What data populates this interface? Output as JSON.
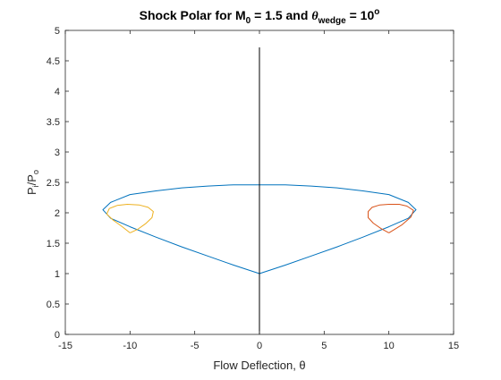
{
  "chart_data": {
    "type": "line",
    "title": {
      "prefix": "Shock Polar for M",
      "m_sub": "0",
      "middle": " = 1.5 and ",
      "theta": "θ",
      "theta_sub": "wedge",
      "value": " = 10",
      "degree": "o"
    },
    "xlabel": "Flow Deflection, θ",
    "ylabel": {
      "main": "P",
      "sub": "i",
      "sep": "/P",
      "sub2": "o"
    },
    "xlim": [
      -15,
      15
    ],
    "ylim": [
      0,
      5
    ],
    "xticks": [
      -15,
      -10,
      -5,
      0,
      5,
      10,
      15
    ],
    "xtick_labels": [
      "-15",
      "-10",
      "-5",
      "0",
      "5",
      "10",
      "15"
    ],
    "yticks": [
      0,
      0.5,
      1,
      1.5,
      2,
      2.5,
      3,
      3.5,
      4,
      4.5,
      5
    ],
    "ytick_labels": [
      "0",
      "0.5",
      "1",
      "1.5",
      "2",
      "2.5",
      "3",
      "3.5",
      "4",
      "4.5",
      "5"
    ],
    "grid": false,
    "series": [
      {
        "color": "#0072BD",
        "x": [
          0,
          2,
          4,
          6,
          8,
          10,
          11.5,
          12.1,
          11.5,
          10,
          8,
          6,
          4,
          2,
          0,
          -2,
          -4,
          -6,
          -8,
          -10,
          -11.5,
          -12.1,
          -11.5,
          -10,
          -8,
          -6,
          -4,
          -2,
          0
        ],
        "y": [
          1.0,
          1.14,
          1.29,
          1.44,
          1.6,
          1.77,
          1.91,
          2.05,
          2.17,
          2.3,
          2.36,
          2.41,
          2.44,
          2.46,
          2.46,
          2.46,
          2.44,
          2.41,
          2.36,
          2.3,
          2.17,
          2.05,
          1.91,
          1.77,
          1.6,
          1.44,
          1.29,
          1.14,
          1.0
        ]
      },
      {
        "color": "#D95319",
        "x": [
          10,
          9.4,
          8.8,
          8.4,
          8.4,
          8.7,
          9.3,
          10,
          10.8,
          11.4,
          11.9,
          11.7,
          11.0,
          10
        ],
        "y": [
          1.67,
          1.74,
          1.83,
          1.92,
          2.02,
          2.09,
          2.13,
          2.14,
          2.14,
          2.11,
          2.04,
          1.93,
          1.8,
          1.67
        ]
      },
      {
        "color": "#EDB120",
        "x": [
          -10,
          -10.6,
          -11.3,
          -11.8,
          -11.6,
          -11.0,
          -10.2,
          -9.3,
          -8.6,
          -8.2,
          -8.3,
          -8.8,
          -9.4,
          -10
        ],
        "y": [
          1.67,
          1.77,
          1.88,
          1.98,
          2.07,
          2.12,
          2.14,
          2.13,
          2.09,
          2.02,
          1.92,
          1.82,
          1.73,
          1.67
        ]
      },
      {
        "color": "#000000",
        "x": [
          0,
          0
        ],
        "y": [
          0,
          4.72
        ]
      }
    ]
  }
}
